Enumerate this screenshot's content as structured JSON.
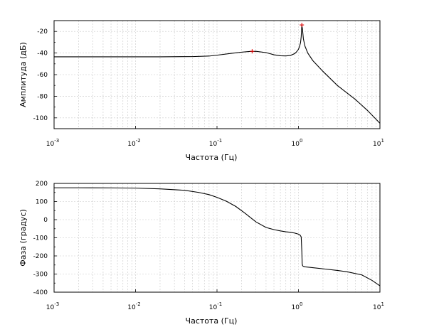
{
  "chart_data": [
    {
      "type": "line",
      "title": "",
      "xlabel": "Частота (Гц)",
      "ylabel": "Амплитуда (дБ)",
      "x_scale": "log",
      "xlim": [
        0.001,
        10
      ],
      "ylim": [
        -110,
        -10
      ],
      "grid": true,
      "x_ticks": [
        {
          "base": "10",
          "exp": "-3"
        },
        {
          "base": "10",
          "exp": "-2"
        },
        {
          "base": "10",
          "exp": "-1"
        },
        {
          "base": "10",
          "exp": "0"
        },
        {
          "base": "10",
          "exp": "1"
        }
      ],
      "y_ticks": [
        "-20",
        "-40",
        "-60",
        "-80",
        "-100"
      ],
      "line_color": "#000000",
      "marker_color": "#e00000",
      "series": [
        {
          "x": [
            0.001,
            0.003,
            0.01,
            0.02,
            0.05,
            0.08,
            0.1,
            0.15,
            0.2,
            0.25,
            0.3,
            0.4,
            0.5,
            0.6,
            0.7,
            0.8,
            0.9,
            0.95,
            1.0,
            1.03,
            1.06,
            1.08,
            1.1,
            1.12,
            1.15,
            1.2,
            1.3,
            1.5,
            2,
            3,
            5,
            7,
            10
          ],
          "y": [
            -43.5,
            -43.5,
            -43.5,
            -43.5,
            -43.3,
            -42.8,
            -42,
            -40.3,
            -39.2,
            -38.6,
            -38.4,
            -39.6,
            -41.6,
            -42.5,
            -42.7,
            -42.2,
            -40.5,
            -38.8,
            -36.5,
            -34,
            -30.5,
            -25,
            -14,
            -18,
            -27,
            -33.5,
            -40,
            -47,
            -57,
            -70,
            -83,
            -93,
            -105
          ]
        }
      ],
      "markers": [
        {
          "x": 0.27,
          "y": -38.4
        },
        {
          "x": 1.1,
          "y": -14
        }
      ]
    },
    {
      "type": "line",
      "title": "",
      "xlabel": "Частота (Гц)",
      "ylabel": "Фаза (градус)",
      "x_scale": "log",
      "xlim": [
        0.001,
        10
      ],
      "ylim": [
        -400,
        200
      ],
      "grid": true,
      "x_ticks": [
        {
          "base": "10",
          "exp": "-3"
        },
        {
          "base": "10",
          "exp": "-2"
        },
        {
          "base": "10",
          "exp": "-1"
        },
        {
          "base": "10",
          "exp": "0"
        },
        {
          "base": "10",
          "exp": "1"
        }
      ],
      "y_ticks": [
        "200",
        "100",
        "0",
        "-100",
        "-200",
        "-300",
        "-400"
      ],
      "line_color": "#000000",
      "series": [
        {
          "x": [
            0.001,
            0.002,
            0.005,
            0.01,
            0.02,
            0.04,
            0.06,
            0.08,
            0.1,
            0.13,
            0.17,
            0.22,
            0.3,
            0.4,
            0.5,
            0.6,
            0.7,
            0.8,
            0.9,
            1.0,
            1.05,
            1.08,
            1.1,
            1.11,
            1.12,
            1.14,
            1.2,
            1.5,
            2,
            3,
            4,
            6,
            8,
            10
          ],
          "y": [
            176,
            176,
            175.5,
            174,
            170,
            162,
            150,
            138,
            123,
            102,
            73,
            36,
            -12,
            -43,
            -55,
            -62,
            -67,
            -70,
            -74,
            -80,
            -86,
            -95,
            -175,
            -240,
            -252,
            -257,
            -260,
            -265,
            -271,
            -280,
            -288,
            -305,
            -335,
            -365
          ]
        }
      ]
    }
  ]
}
